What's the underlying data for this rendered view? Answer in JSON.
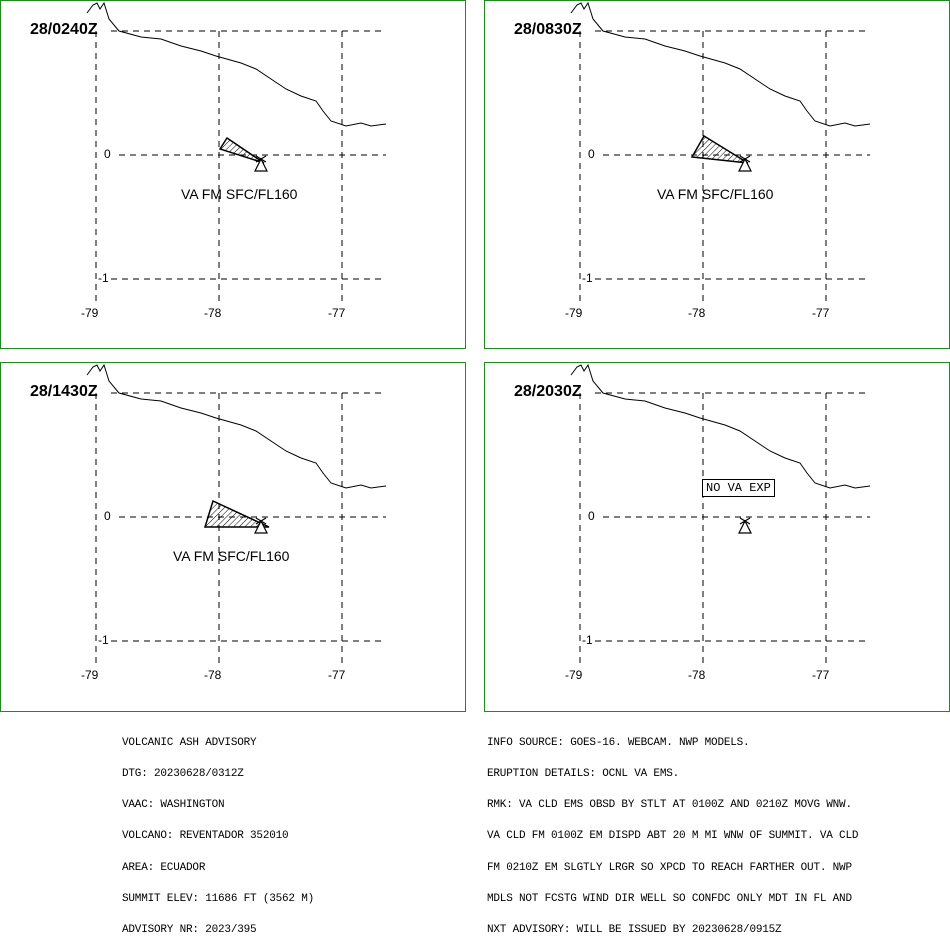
{
  "panels": [
    {
      "time": "28/0240Z",
      "label": "VA FM SFC/FL160",
      "no_va": ""
    },
    {
      "time": "28/0830Z",
      "label": "VA FM SFC/FL160",
      "no_va": ""
    },
    {
      "time": "28/1430Z",
      "label": "VA FM SFC/FL160",
      "no_va": ""
    },
    {
      "time": "28/2030Z",
      "label": "",
      "no_va": "NO VA EXP"
    }
  ],
  "axis": {
    "lon_ticks": [
      "-79",
      "-78",
      "-77"
    ],
    "lat_ticks": [
      "0",
      "-1"
    ]
  },
  "advisory_left": [
    "VOLCANIC ASH ADVISORY",
    "DTG: 20230628/0312Z",
    "VAAC: WASHINGTON",
    "VOLCANO: REVENTADOR 352010",
    "AREA: ECUADOR",
    "SUMMIT ELEV: 11686 FT (3562 M)",
    "ADVISORY NR: 2023/395"
  ],
  "advisory_right": [
    "INFO SOURCE: GOES-16. WEBCAM. NWP MODELS.",
    "ERUPTION DETAILS: OCNL VA EMS.",
    "RMK: VA CLD EMS OBSD BY STLT AT 0100Z AND 0210Z MOVG WNW.",
    "VA CLD FM 0100Z EM DISPD ABT 20 M MI WNW OF SUMMIT. VA CLD",
    "FM 0210Z EM SLGTLY LRGR SO XPCD TO REACH FARTHER OUT. NWP",
    "MDLS NOT FCSTG WIND DIR WELL SO CONFDC ONLY MDT IN FL AND",
    "NXT ADVISORY: WILL BE ISSUED BY 20230628/0915Z"
  ],
  "colors": {
    "panel_border": "#1f8a1f",
    "lines": "#000000"
  }
}
